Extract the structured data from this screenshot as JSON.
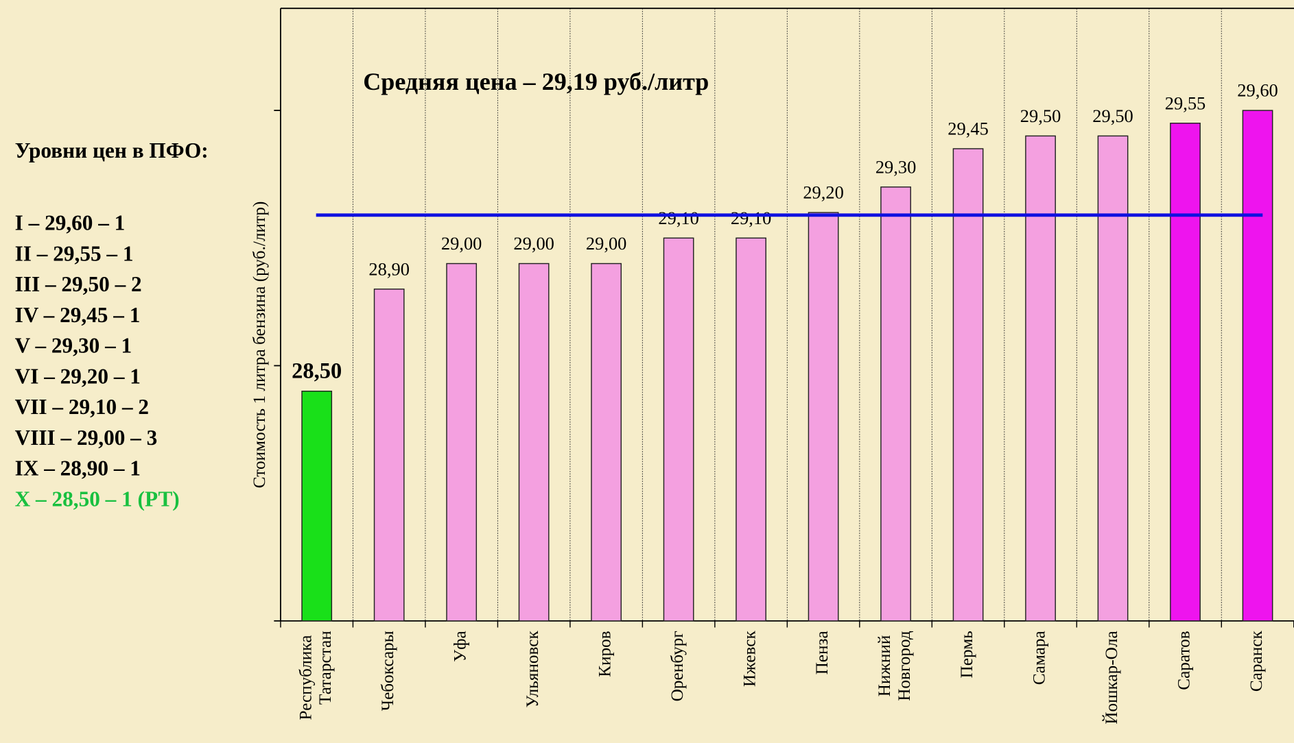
{
  "chart_data": {
    "type": "bar",
    "annotation": "Средняя цена – 29,19 руб./литр",
    "average": 29.19,
    "average_color": "#1010e0",
    "ylabel": "Стоимость 1 литра бензина  (руб./литр)",
    "categories": [
      "Республика Татарстан",
      "Чебоксары",
      "Уфа",
      "Ульяновск",
      "Киров",
      "Оренбург",
      "Ижевск",
      "Пенза",
      "Нижний Новгород",
      "Пермь",
      "Самара",
      "Йошкар-Ола",
      "Саратов",
      "Саранск"
    ],
    "values": [
      28.5,
      28.9,
      29.0,
      29.0,
      29.0,
      29.1,
      29.1,
      29.2,
      29.3,
      29.45,
      29.5,
      29.5,
      29.55,
      29.6
    ],
    "value_labels": [
      "28,50",
      "28,90",
      "29,00",
      "29,00",
      "29,00",
      "29,10",
      "29,10",
      "29,20",
      "29,30",
      "29,45",
      "29,50",
      "29,50",
      "29,55",
      "29,60"
    ],
    "colors": [
      "#19e019",
      "#f4a0e0",
      "#f4a0e0",
      "#f4a0e0",
      "#f4a0e0",
      "#f4a0e0",
      "#f4a0e0",
      "#f4a0e0",
      "#f4a0e0",
      "#f4a0e0",
      "#f4a0e0",
      "#f4a0e0",
      "#ee14ee",
      "#ee14ee"
    ],
    "ylim": [
      27.6,
      30.0
    ],
    "yticks": [
      27.6,
      28.6,
      29.6
    ],
    "grid": true
  },
  "side_panel": {
    "title": "Уровни цен в ПФО:",
    "levels": [
      {
        "text": "I – 29,60 – 1",
        "color": "#000000"
      },
      {
        "text": "II – 29,55 – 1",
        "color": "#000000"
      },
      {
        "text": "III – 29,50 – 2",
        "color": "#000000"
      },
      {
        "text": "IV – 29,45 – 1",
        "color": "#000000"
      },
      {
        "text": "V – 29,30 – 1",
        "color": "#000000"
      },
      {
        "text": "VI  – 29,20 – 1",
        "color": "#000000"
      },
      {
        "text": "VII – 29,10 – 2",
        "color": "#000000"
      },
      {
        "text": "VIII – 29,00 – 3",
        "color": "#000000"
      },
      {
        "text": "IX – 28,90 – 1",
        "color": "#000000"
      },
      {
        "text": "X – 28,50 – 1 (РТ)",
        "color": "#19c040"
      }
    ]
  }
}
